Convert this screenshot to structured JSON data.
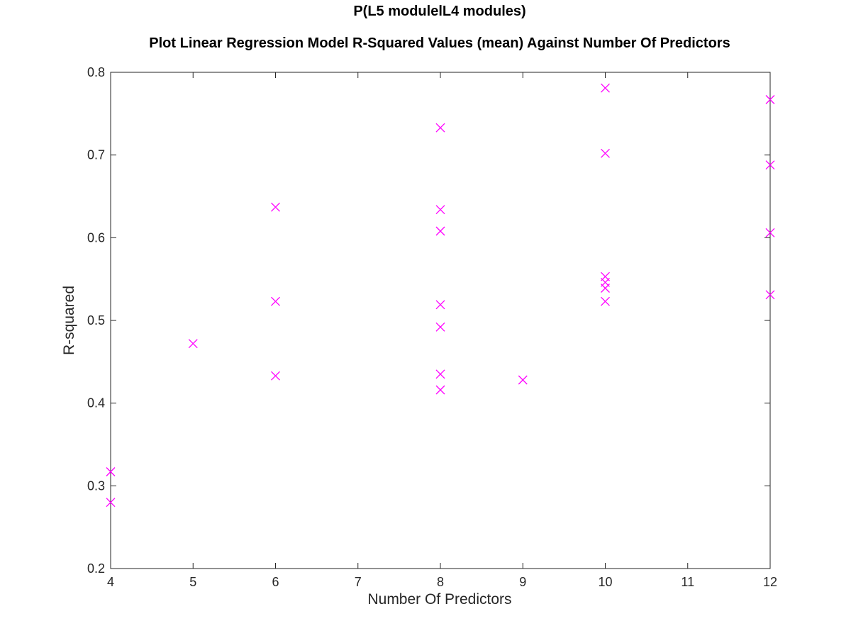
{
  "chart_data": {
    "type": "scatter",
    "title": "P(L5 modulelL4 modules)",
    "subtitle": "Plot Linear Regression Model R-Squared Values (mean) Against Number Of Predictors",
    "xlabel": "Number Of Predictors",
    "ylabel": "R-squared",
    "xlim": [
      4,
      12
    ],
    "ylim": [
      0.2,
      0.8
    ],
    "xticks": [
      "4",
      "5",
      "6",
      "7",
      "8",
      "9",
      "10",
      "11",
      "12"
    ],
    "yticks": [
      "0.2",
      "0.3",
      "0.4",
      "0.5",
      "0.6",
      "0.7",
      "0.8"
    ],
    "grid": false,
    "marker": "x",
    "color": "#ff00ff",
    "points": [
      {
        "x": 4,
        "y": 0.317
      },
      {
        "x": 4,
        "y": 0.28
      },
      {
        "x": 5,
        "y": 0.472
      },
      {
        "x": 6,
        "y": 0.637
      },
      {
        "x": 6,
        "y": 0.523
      },
      {
        "x": 6,
        "y": 0.433
      },
      {
        "x": 8,
        "y": 0.733
      },
      {
        "x": 8,
        "y": 0.634
      },
      {
        "x": 8,
        "y": 0.608
      },
      {
        "x": 8,
        "y": 0.519
      },
      {
        "x": 8,
        "y": 0.492
      },
      {
        "x": 8,
        "y": 0.435
      },
      {
        "x": 8,
        "y": 0.416
      },
      {
        "x": 9,
        "y": 0.428
      },
      {
        "x": 10,
        "y": 0.781
      },
      {
        "x": 10,
        "y": 0.702
      },
      {
        "x": 10,
        "y": 0.553
      },
      {
        "x": 10,
        "y": 0.546
      },
      {
        "x": 10,
        "y": 0.539
      },
      {
        "x": 10,
        "y": 0.523
      },
      {
        "x": 12,
        "y": 0.767
      },
      {
        "x": 12,
        "y": 0.688
      },
      {
        "x": 12,
        "y": 0.606
      },
      {
        "x": 12,
        "y": 0.531
      }
    ]
  }
}
